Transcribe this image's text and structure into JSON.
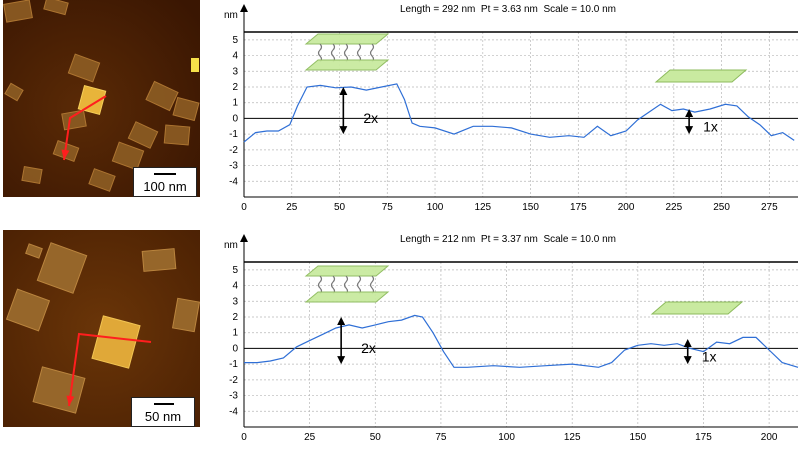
{
  "panels": [
    {
      "image": {
        "scale_label": "100 nm"
      },
      "profile": {
        "header": {
          "length": "Length = 292 nm",
          "pt": "Pt = 3.63 nm",
          "scale": "Scale = 10.0 nm"
        },
        "y_unit": "nm",
        "annotations": {
          "bilayer": "2x",
          "monolayer": "1x"
        },
        "chart_data": {
          "type": "line",
          "xlim": [
            0,
            290
          ],
          "ylim": [
            -5,
            5.5
          ],
          "x_ticks": [
            "0",
            "25",
            "50",
            "75",
            "100",
            "125",
            "150",
            "175",
            "200",
            "225",
            "250",
            "275"
          ],
          "y_ticks": [
            "5",
            "4",
            "3",
            "2",
            "1",
            "0",
            "-1",
            "-2",
            "-3",
            "-4"
          ],
          "grid": true,
          "line_color": "#2f6fd6",
          "x": [
            0,
            6,
            12,
            18,
            24,
            28,
            33,
            40,
            48,
            56,
            64,
            72,
            80,
            84,
            88,
            92,
            100,
            110,
            120,
            130,
            140,
            150,
            160,
            170,
            178,
            185,
            192,
            200,
            206,
            212,
            218,
            224,
            230,
            236,
            244,
            252,
            258,
            264,
            270,
            276,
            282,
            288
          ],
          "y": [
            -1.5,
            -0.9,
            -0.8,
            -0.8,
            -0.4,
            0.8,
            2.0,
            2.1,
            1.95,
            2.0,
            1.8,
            2.0,
            2.2,
            1.2,
            -0.3,
            -0.5,
            -0.6,
            -1.0,
            -0.5,
            -0.5,
            -0.6,
            -1.0,
            -1.2,
            -1.1,
            -1.2,
            -0.5,
            -1.1,
            -0.8,
            -0.1,
            0.4,
            0.9,
            0.5,
            0.6,
            0.4,
            0.6,
            0.9,
            0.8,
            0.1,
            -0.4,
            -1.1,
            -0.9,
            -1.4
          ]
        }
      }
    },
    {
      "image": {
        "scale_label": "50 nm"
      },
      "profile": {
        "header": {
          "length": "Length = 212 nm",
          "pt": "Pt = 3.37 nm",
          "scale": "Scale = 10.0 nm"
        },
        "y_unit": "nm",
        "annotations": {
          "bilayer": "2x",
          "monolayer": "1x"
        },
        "chart_data": {
          "type": "line",
          "xlim": [
            0,
            211
          ],
          "ylim": [
            -5,
            5.5
          ],
          "x_ticks": [
            "0",
            "25",
            "50",
            "75",
            "100",
            "125",
            "150",
            "175",
            "200"
          ],
          "y_ticks": [
            "5",
            "4",
            "3",
            "2",
            "1",
            "0",
            "-1",
            "-2",
            "-3",
            "-4"
          ],
          "grid": true,
          "line_color": "#2f6fd6",
          "x": [
            0,
            5,
            10,
            15,
            20,
            25,
            30,
            35,
            40,
            45,
            50,
            55,
            60,
            65,
            68,
            72,
            76,
            80,
            85,
            95,
            105,
            115,
            125,
            135,
            140,
            145,
            150,
            155,
            160,
            165,
            170,
            175,
            180,
            185,
            190,
            195,
            200,
            205,
            211
          ],
          "y": [
            -0.9,
            -0.9,
            -0.8,
            -0.6,
            0.1,
            0.5,
            0.9,
            1.3,
            1.5,
            1.3,
            1.5,
            1.7,
            1.8,
            2.1,
            2.0,
            1.0,
            -0.2,
            -1.2,
            -1.2,
            -1.1,
            -1.2,
            -1.1,
            -1.0,
            -1.2,
            -0.9,
            -0.1,
            0.2,
            0.3,
            0.2,
            0.3,
            0.0,
            -0.2,
            0.4,
            0.3,
            0.7,
            0.7,
            -0.1,
            -0.9,
            -1.2
          ]
        }
      }
    }
  ]
}
